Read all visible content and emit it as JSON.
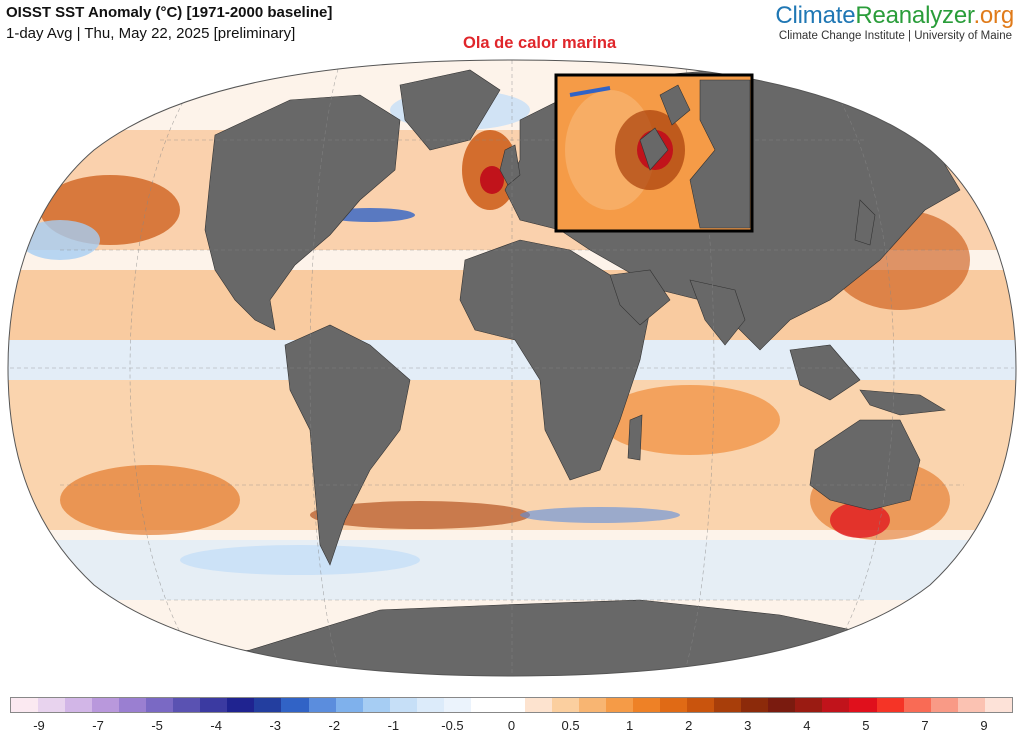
{
  "header": {
    "title": "OISST SST Anomaly (°C) [1971-2000 baseline]",
    "subtitle": "1-day Avg | Thu, May 22, 2025 [preliminary]"
  },
  "brand": {
    "part1": "Climate",
    "part2": "Reanalyzer",
    "part3": ".org",
    "subtitle": "Climate Change Institute | University of Maine"
  },
  "annotation": {
    "label": "Ola de calor marina",
    "color": "#e0262b"
  },
  "map": {
    "projection": "robinson-like world map",
    "land_color": "#686868",
    "inset_region": "North Sea / Northwest Europe"
  },
  "legend": {
    "ticks": [
      "-9",
      "-7",
      "-5",
      "-4",
      "-3",
      "-2",
      "-1",
      "-0.5",
      "0",
      "0.5",
      "1",
      "2",
      "3",
      "4",
      "5",
      "7",
      "9"
    ],
    "colors": [
      "#fbe9f1",
      "#e8d3ee",
      "#d2b6e7",
      "#b998dc",
      "#9a7fd1",
      "#7a69c4",
      "#5a52b2",
      "#3b3aa1",
      "#1f2390",
      "#233e9f",
      "#3163c6",
      "#5b8ddd",
      "#7fb1ec",
      "#a6cdf3",
      "#c6dff7",
      "#dcebfa",
      "#ebf3fc",
      "#ffffff",
      "#ffffff",
      "#fde3cf",
      "#fbcf9f",
      "#f8b572",
      "#f59b47",
      "#ee8126",
      "#e06a15",
      "#c9540d",
      "#a83e0a",
      "#8c2a0a",
      "#7a1b0f",
      "#9a1b12",
      "#c1131b",
      "#e0101c",
      "#f53426",
      "#f96b55",
      "#f99a86",
      "#fbc2b2",
      "#fde2d8"
    ]
  }
}
